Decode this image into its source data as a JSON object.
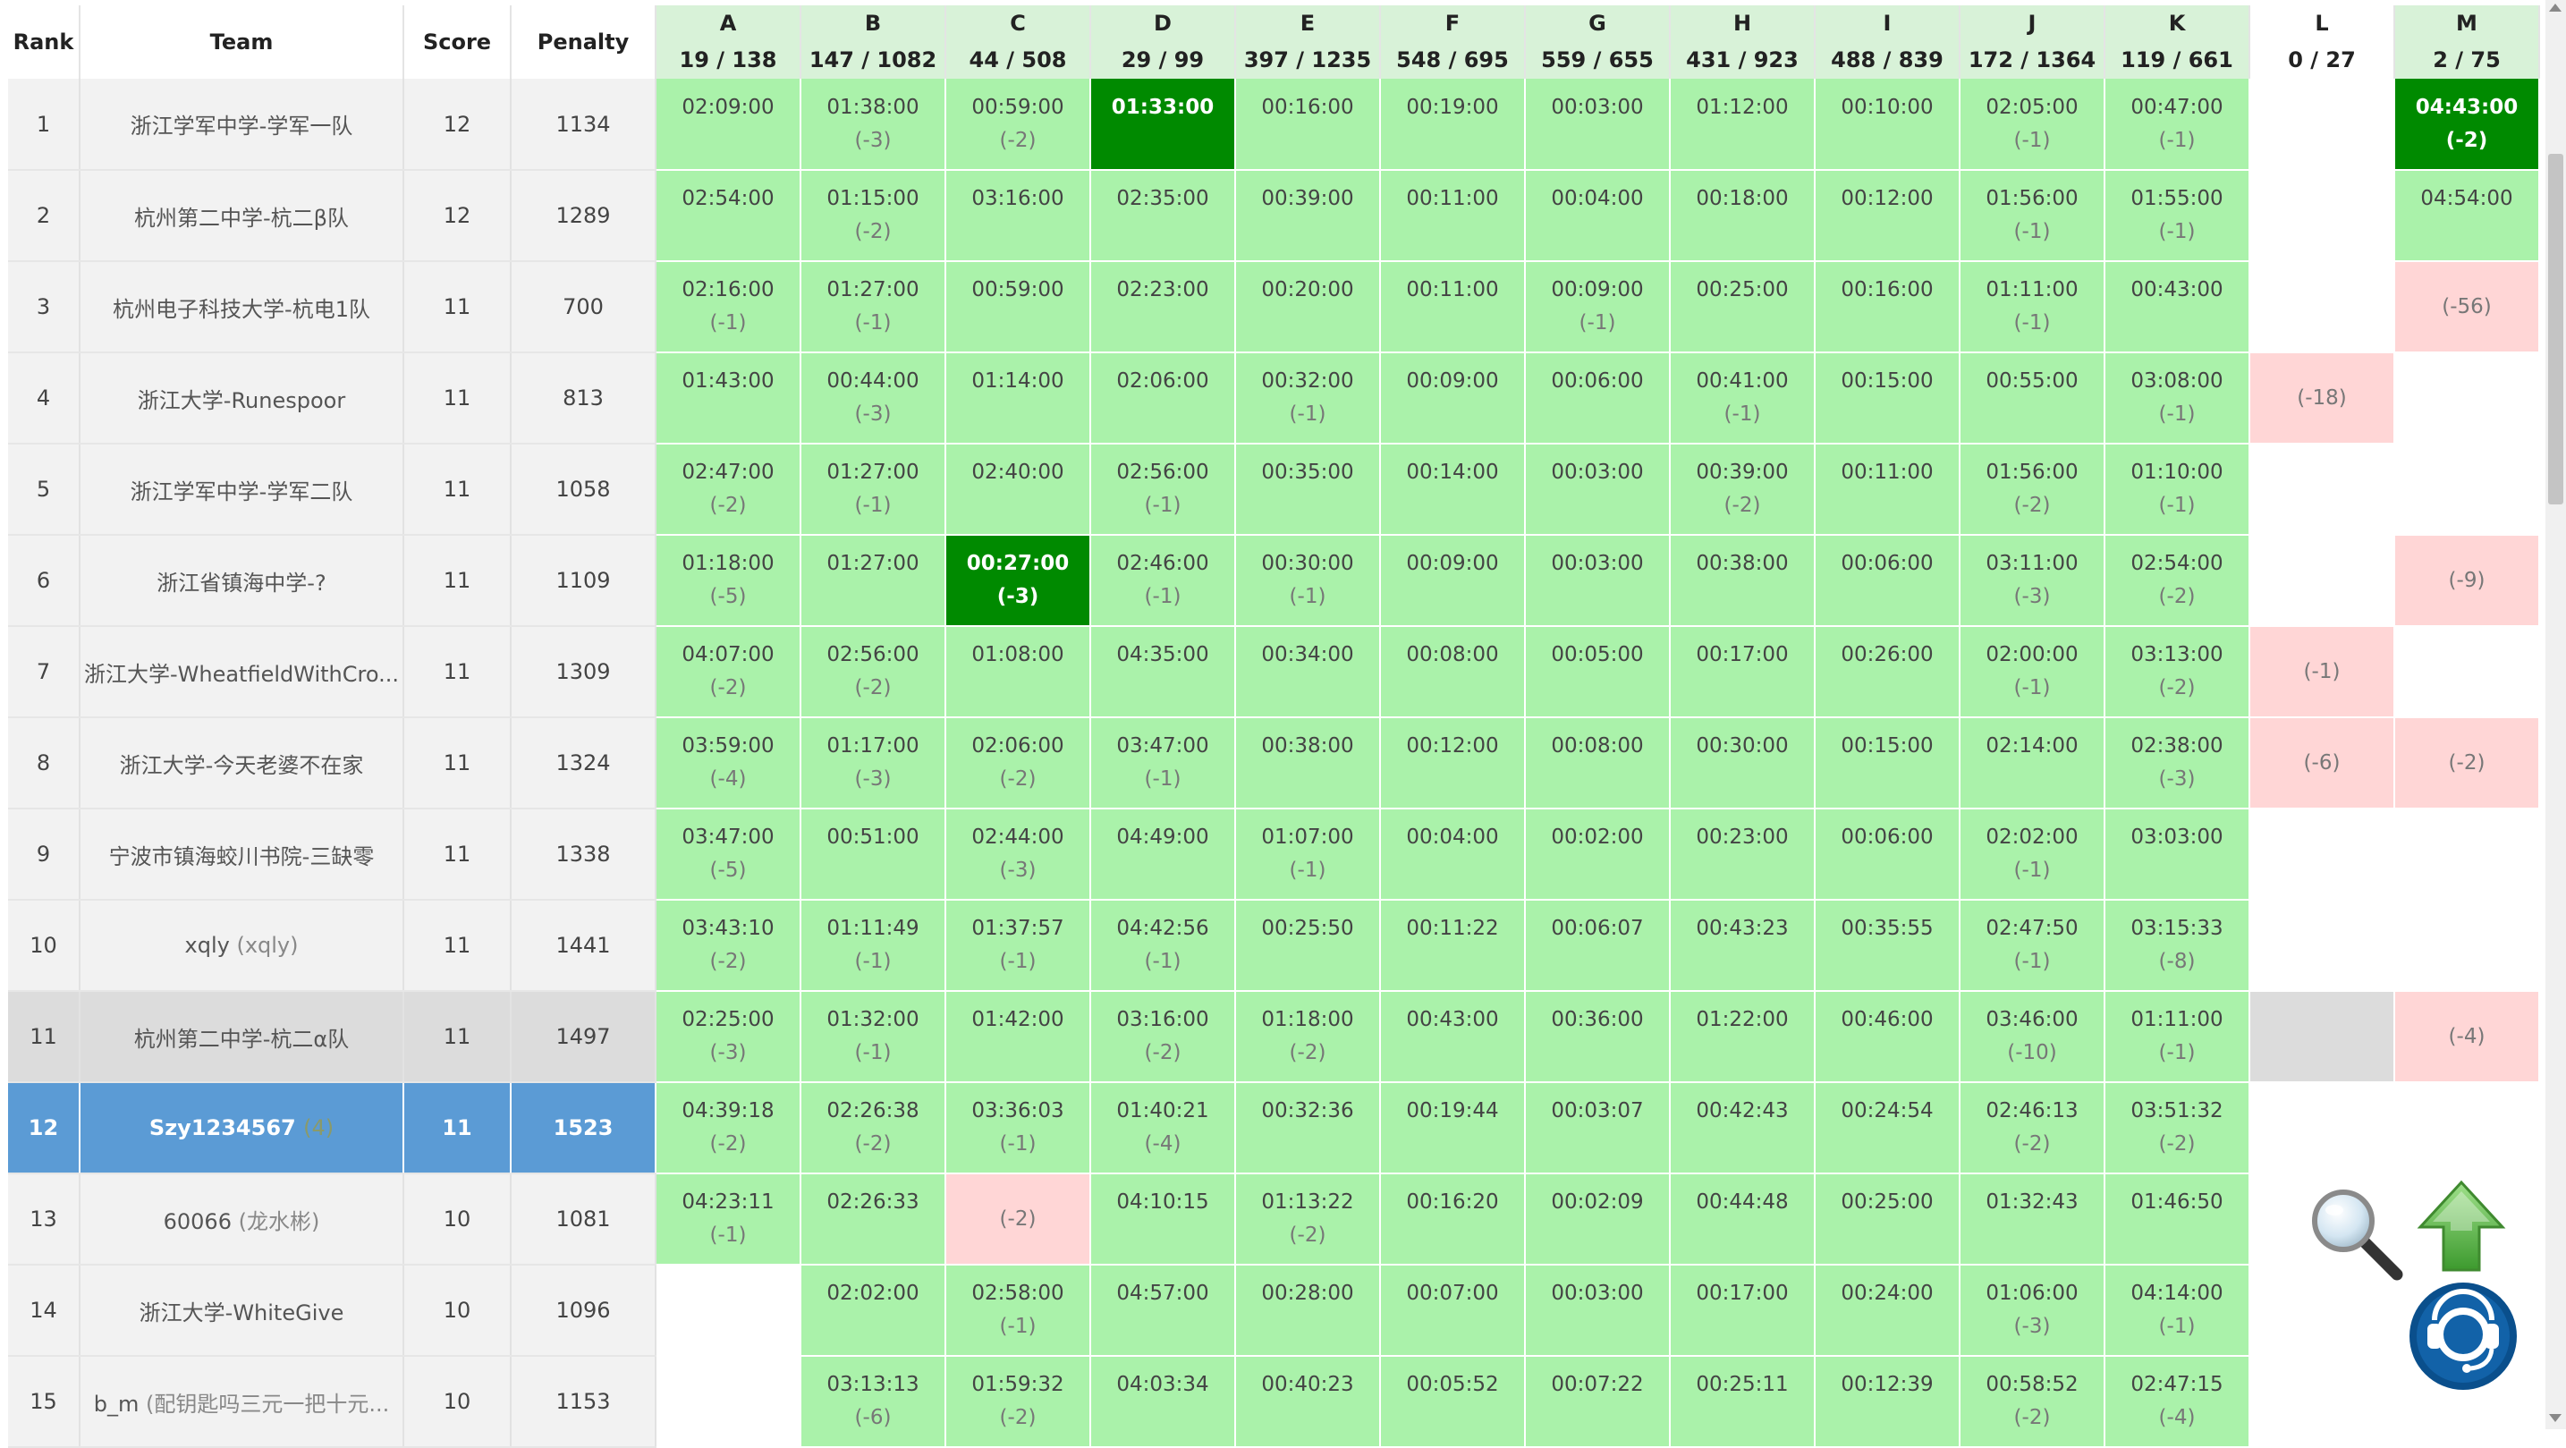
{
  "header": {
    "rank": "Rank",
    "team": "Team",
    "score": "Score",
    "penalty": "Penalty"
  },
  "problems": [
    {
      "label": "A",
      "stat": "19 / 138"
    },
    {
      "label": "B",
      "stat": "147 / 1082"
    },
    {
      "label": "C",
      "stat": "44 / 508"
    },
    {
      "label": "D",
      "stat": "29 / 99"
    },
    {
      "label": "E",
      "stat": "397 / 1235"
    },
    {
      "label": "F",
      "stat": "548 / 695"
    },
    {
      "label": "G",
      "stat": "559 / 655"
    },
    {
      "label": "H",
      "stat": "431 / 923"
    },
    {
      "label": "I",
      "stat": "488 / 839"
    },
    {
      "label": "J",
      "stat": "172 / 1364"
    },
    {
      "label": "K",
      "stat": "119 / 661"
    },
    {
      "label": "L",
      "stat": "0 / 27"
    },
    {
      "label": "M",
      "stat": "2 / 75"
    }
  ],
  "rows": [
    {
      "rank": "1",
      "name": "浙江学军中学-学军一队",
      "alias": "",
      "score": "12",
      "penalty": "1134",
      "style": "",
      "cells": [
        [
          "ac",
          "02:09:00",
          ""
        ],
        [
          "ac",
          "01:38:00",
          "(-3)"
        ],
        [
          "ac",
          "00:59:00",
          "(-2)"
        ],
        [
          "fb",
          "01:33:00",
          ""
        ],
        [
          "ac",
          "00:16:00",
          ""
        ],
        [
          "ac",
          "00:19:00",
          ""
        ],
        [
          "ac",
          "00:03:00",
          ""
        ],
        [
          "ac",
          "01:12:00",
          ""
        ],
        [
          "ac",
          "00:10:00",
          ""
        ],
        [
          "ac",
          "02:05:00",
          "(-1)"
        ],
        [
          "ac",
          "00:47:00",
          "(-1)"
        ],
        [
          "none",
          "",
          ""
        ],
        [
          "fb",
          "04:43:00",
          "(-2)"
        ]
      ]
    },
    {
      "rank": "2",
      "name": "杭州第二中学-杭二β队",
      "alias": "",
      "score": "12",
      "penalty": "1289",
      "style": "",
      "cells": [
        [
          "ac",
          "02:54:00",
          ""
        ],
        [
          "ac",
          "01:15:00",
          "(-2)"
        ],
        [
          "ac",
          "03:16:00",
          ""
        ],
        [
          "ac",
          "02:35:00",
          ""
        ],
        [
          "ac",
          "00:39:00",
          ""
        ],
        [
          "ac",
          "00:11:00",
          ""
        ],
        [
          "ac",
          "00:04:00",
          ""
        ],
        [
          "ac",
          "00:18:00",
          ""
        ],
        [
          "ac",
          "00:12:00",
          ""
        ],
        [
          "ac",
          "01:56:00",
          "(-1)"
        ],
        [
          "ac",
          "01:55:00",
          "(-1)"
        ],
        [
          "none",
          "",
          ""
        ],
        [
          "ac",
          "04:54:00",
          ""
        ]
      ]
    },
    {
      "rank": "3",
      "name": "杭州电子科技大学-杭电1队",
      "alias": "",
      "score": "11",
      "penalty": "700",
      "style": "",
      "cells": [
        [
          "ac",
          "02:16:00",
          "(-1)"
        ],
        [
          "ac",
          "01:27:00",
          "(-1)"
        ],
        [
          "ac",
          "00:59:00",
          ""
        ],
        [
          "ac",
          "02:23:00",
          ""
        ],
        [
          "ac",
          "00:20:00",
          ""
        ],
        [
          "ac",
          "00:11:00",
          ""
        ],
        [
          "ac",
          "00:09:00",
          "(-1)"
        ],
        [
          "ac",
          "00:25:00",
          ""
        ],
        [
          "ac",
          "00:16:00",
          ""
        ],
        [
          "ac",
          "01:11:00",
          "(-1)"
        ],
        [
          "ac",
          "00:43:00",
          ""
        ],
        [
          "none",
          "",
          ""
        ],
        [
          "wa",
          "",
          "(-56)"
        ]
      ]
    },
    {
      "rank": "4",
      "name": "浙江大学-Runespoor",
      "alias": "",
      "score": "11",
      "penalty": "813",
      "style": "",
      "cells": [
        [
          "ac",
          "01:43:00",
          ""
        ],
        [
          "ac",
          "00:44:00",
          "(-3)"
        ],
        [
          "ac",
          "01:14:00",
          ""
        ],
        [
          "ac",
          "02:06:00",
          ""
        ],
        [
          "ac",
          "00:32:00",
          "(-1)"
        ],
        [
          "ac",
          "00:09:00",
          ""
        ],
        [
          "ac",
          "00:06:00",
          ""
        ],
        [
          "ac",
          "00:41:00",
          "(-1)"
        ],
        [
          "ac",
          "00:15:00",
          ""
        ],
        [
          "ac",
          "00:55:00",
          ""
        ],
        [
          "ac",
          "03:08:00",
          "(-1)"
        ],
        [
          "wa",
          "",
          "(-18)"
        ],
        [
          "none",
          "",
          ""
        ]
      ]
    },
    {
      "rank": "5",
      "name": "浙江学军中学-学军二队",
      "alias": "",
      "score": "11",
      "penalty": "1058",
      "style": "",
      "cells": [
        [
          "ac",
          "02:47:00",
          "(-2)"
        ],
        [
          "ac",
          "01:27:00",
          "(-1)"
        ],
        [
          "ac",
          "02:40:00",
          ""
        ],
        [
          "ac",
          "02:56:00",
          "(-1)"
        ],
        [
          "ac",
          "00:35:00",
          ""
        ],
        [
          "ac",
          "00:14:00",
          ""
        ],
        [
          "ac",
          "00:03:00",
          ""
        ],
        [
          "ac",
          "00:39:00",
          "(-2)"
        ],
        [
          "ac",
          "00:11:00",
          ""
        ],
        [
          "ac",
          "01:56:00",
          "(-2)"
        ],
        [
          "ac",
          "01:10:00",
          "(-1)"
        ],
        [
          "none",
          "",
          ""
        ],
        [
          "none",
          "",
          ""
        ]
      ]
    },
    {
      "rank": "6",
      "name": "浙江省镇海中学-?",
      "alias": "",
      "score": "11",
      "penalty": "1109",
      "style": "",
      "cells": [
        [
          "ac",
          "01:18:00",
          "(-5)"
        ],
        [
          "ac",
          "01:27:00",
          ""
        ],
        [
          "fb",
          "00:27:00",
          "(-3)"
        ],
        [
          "ac",
          "02:46:00",
          "(-1)"
        ],
        [
          "ac",
          "00:30:00",
          "(-1)"
        ],
        [
          "ac",
          "00:09:00",
          ""
        ],
        [
          "ac",
          "00:03:00",
          ""
        ],
        [
          "ac",
          "00:38:00",
          ""
        ],
        [
          "ac",
          "00:06:00",
          ""
        ],
        [
          "ac",
          "03:11:00",
          "(-3)"
        ],
        [
          "ac",
          "02:54:00",
          "(-2)"
        ],
        [
          "none",
          "",
          ""
        ],
        [
          "wa",
          "",
          "(-9)"
        ]
      ]
    },
    {
      "rank": "7",
      "name": "浙江大学-WheatfieldWithCro...",
      "alias": "",
      "score": "11",
      "penalty": "1309",
      "style": "",
      "cells": [
        [
          "ac",
          "04:07:00",
          "(-2)"
        ],
        [
          "ac",
          "02:56:00",
          "(-2)"
        ],
        [
          "ac",
          "01:08:00",
          ""
        ],
        [
          "ac",
          "04:35:00",
          ""
        ],
        [
          "ac",
          "00:34:00",
          ""
        ],
        [
          "ac",
          "00:08:00",
          ""
        ],
        [
          "ac",
          "00:05:00",
          ""
        ],
        [
          "ac",
          "00:17:00",
          ""
        ],
        [
          "ac",
          "00:26:00",
          ""
        ],
        [
          "ac",
          "02:00:00",
          "(-1)"
        ],
        [
          "ac",
          "03:13:00",
          "(-2)"
        ],
        [
          "wa",
          "",
          "(-1)"
        ],
        [
          "none",
          "",
          ""
        ]
      ]
    },
    {
      "rank": "8",
      "name": "浙江大学-今天老婆不在家",
      "alias": "",
      "score": "11",
      "penalty": "1324",
      "style": "",
      "cells": [
        [
          "ac",
          "03:59:00",
          "(-4)"
        ],
        [
          "ac",
          "01:17:00",
          "(-3)"
        ],
        [
          "ac",
          "02:06:00",
          "(-2)"
        ],
        [
          "ac",
          "03:47:00",
          "(-1)"
        ],
        [
          "ac",
          "00:38:00",
          ""
        ],
        [
          "ac",
          "00:12:00",
          ""
        ],
        [
          "ac",
          "00:08:00",
          ""
        ],
        [
          "ac",
          "00:30:00",
          ""
        ],
        [
          "ac",
          "00:15:00",
          ""
        ],
        [
          "ac",
          "02:14:00",
          ""
        ],
        [
          "ac",
          "02:38:00",
          "(-3)"
        ],
        [
          "wa",
          "",
          "(-6)"
        ],
        [
          "wa",
          "",
          "(-2)"
        ]
      ]
    },
    {
      "rank": "9",
      "name": "宁波市镇海蛟川书院-三缺零",
      "alias": "",
      "score": "11",
      "penalty": "1338",
      "style": "",
      "cells": [
        [
          "ac",
          "03:47:00",
          "(-5)"
        ],
        [
          "ac",
          "00:51:00",
          ""
        ],
        [
          "ac",
          "02:44:00",
          "(-3)"
        ],
        [
          "ac",
          "04:49:00",
          ""
        ],
        [
          "ac",
          "01:07:00",
          "(-1)"
        ],
        [
          "ac",
          "00:04:00",
          ""
        ],
        [
          "ac",
          "00:02:00",
          ""
        ],
        [
          "ac",
          "00:23:00",
          ""
        ],
        [
          "ac",
          "00:06:00",
          ""
        ],
        [
          "ac",
          "02:02:00",
          "(-1)"
        ],
        [
          "ac",
          "03:03:00",
          ""
        ],
        [
          "none",
          "",
          ""
        ],
        [
          "none",
          "",
          ""
        ]
      ]
    },
    {
      "rank": "10",
      "name": "xqly",
      "alias": "(xqly)",
      "score": "11",
      "penalty": "1441",
      "style": "",
      "cells": [
        [
          "ac",
          "03:43:10",
          "(-2)"
        ],
        [
          "ac",
          "01:11:49",
          "(-1)"
        ],
        [
          "ac",
          "01:37:57",
          "(-1)"
        ],
        [
          "ac",
          "04:42:56",
          "(-1)"
        ],
        [
          "ac",
          "00:25:50",
          ""
        ],
        [
          "ac",
          "00:11:22",
          ""
        ],
        [
          "ac",
          "00:06:07",
          ""
        ],
        [
          "ac",
          "00:43:23",
          ""
        ],
        [
          "ac",
          "00:35:55",
          ""
        ],
        [
          "ac",
          "02:47:50",
          "(-1)"
        ],
        [
          "ac",
          "03:15:33",
          "(-8)"
        ],
        [
          "none",
          "",
          ""
        ],
        [
          "none",
          "",
          ""
        ]
      ]
    },
    {
      "rank": "11",
      "name": "杭州第二中学-杭二α队",
      "alias": "",
      "score": "11",
      "penalty": "1497",
      "style": "grey",
      "cells": [
        [
          "ac",
          "02:25:00",
          "(-3)"
        ],
        [
          "ac",
          "01:32:00",
          "(-1)"
        ],
        [
          "ac",
          "01:42:00",
          ""
        ],
        [
          "ac",
          "03:16:00",
          "(-2)"
        ],
        [
          "ac",
          "01:18:00",
          "(-2)"
        ],
        [
          "ac",
          "00:43:00",
          ""
        ],
        [
          "ac",
          "00:36:00",
          ""
        ],
        [
          "ac",
          "01:22:00",
          ""
        ],
        [
          "ac",
          "00:46:00",
          ""
        ],
        [
          "ac",
          "03:46:00",
          "(-10)"
        ],
        [
          "ac",
          "01:11:00",
          "(-1)"
        ],
        [
          "none",
          "",
          ""
        ],
        [
          "wa",
          "",
          "(-4)"
        ]
      ]
    },
    {
      "rank": "12",
      "name": "Szy1234567",
      "alias": "(4)",
      "score": "11",
      "penalty": "1523",
      "style": "me",
      "cells": [
        [
          "ac",
          "04:39:18",
          "(-2)"
        ],
        [
          "ac",
          "02:26:38",
          "(-2)"
        ],
        [
          "ac",
          "03:36:03",
          "(-1)"
        ],
        [
          "ac",
          "01:40:21",
          "(-4)"
        ],
        [
          "ac",
          "00:32:36",
          ""
        ],
        [
          "ac",
          "00:19:44",
          ""
        ],
        [
          "ac",
          "00:03:07",
          ""
        ],
        [
          "ac",
          "00:42:43",
          ""
        ],
        [
          "ac",
          "00:24:54",
          ""
        ],
        [
          "ac",
          "02:46:13",
          "(-2)"
        ],
        [
          "ac",
          "03:51:32",
          "(-2)"
        ],
        [
          "none",
          "",
          ""
        ],
        [
          "none",
          "",
          ""
        ]
      ]
    },
    {
      "rank": "13",
      "name": "60066",
      "alias": "(龙水彬)",
      "score": "10",
      "penalty": "1081",
      "style": "",
      "cells": [
        [
          "ac",
          "04:23:11",
          "(-1)"
        ],
        [
          "ac",
          "02:26:33",
          ""
        ],
        [
          "wa",
          "",
          "(-2)"
        ],
        [
          "ac",
          "04:10:15",
          ""
        ],
        [
          "ac",
          "01:13:22",
          "(-2)"
        ],
        [
          "ac",
          "00:16:20",
          ""
        ],
        [
          "ac",
          "00:02:09",
          ""
        ],
        [
          "ac",
          "00:44:48",
          ""
        ],
        [
          "ac",
          "00:25:00",
          ""
        ],
        [
          "ac",
          "01:32:43",
          ""
        ],
        [
          "ac",
          "01:46:50",
          ""
        ],
        [
          "none",
          "",
          ""
        ],
        [
          "none",
          "",
          ""
        ]
      ]
    },
    {
      "rank": "14",
      "name": "浙江大学-WhiteGive",
      "alias": "",
      "score": "10",
      "penalty": "1096",
      "style": "",
      "cells": [
        [
          "none",
          "",
          ""
        ],
        [
          "ac",
          "02:02:00",
          ""
        ],
        [
          "ac",
          "02:58:00",
          "(-1)"
        ],
        [
          "ac",
          "04:57:00",
          ""
        ],
        [
          "ac",
          "00:28:00",
          ""
        ],
        [
          "ac",
          "00:07:00",
          ""
        ],
        [
          "ac",
          "00:03:00",
          ""
        ],
        [
          "ac",
          "00:17:00",
          ""
        ],
        [
          "ac",
          "00:24:00",
          ""
        ],
        [
          "ac",
          "01:06:00",
          "(-3)"
        ],
        [
          "ac",
          "04:14:00",
          "(-1)"
        ],
        [
          "none",
          "",
          ""
        ],
        [
          "none",
          "",
          ""
        ]
      ]
    },
    {
      "rank": "15",
      "name": "b_m",
      "alias": "(配钥匙吗三元一把十元...",
      "score": "10",
      "penalty": "1153",
      "style": "",
      "cells": [
        [
          "none",
          "",
          ""
        ],
        [
          "ac",
          "03:13:13",
          "(-6)"
        ],
        [
          "ac",
          "01:59:32",
          "(-2)"
        ],
        [
          "ac",
          "04:03:34",
          ""
        ],
        [
          "ac",
          "00:40:23",
          ""
        ],
        [
          "ac",
          "00:05:52",
          ""
        ],
        [
          "ac",
          "00:07:22",
          ""
        ],
        [
          "ac",
          "00:25:11",
          ""
        ],
        [
          "ac",
          "00:12:39",
          ""
        ],
        [
          "ac",
          "00:58:52",
          "(-2)"
        ],
        [
          "ac",
          "02:47:15",
          "(-4)"
        ],
        [
          "none",
          "",
          ""
        ],
        [
          "none",
          "",
          ""
        ]
      ]
    }
  ],
  "widgets": {
    "search_icon": "magnifier-icon",
    "top_icon": "arrow-up-icon",
    "support_icon": "headset-icon"
  },
  "colors": {
    "accepted": "#aaf2aa",
    "first_blood": "#008a00",
    "wrong": "#ffd6d6",
    "selected_row": "#5b9bd5"
  }
}
